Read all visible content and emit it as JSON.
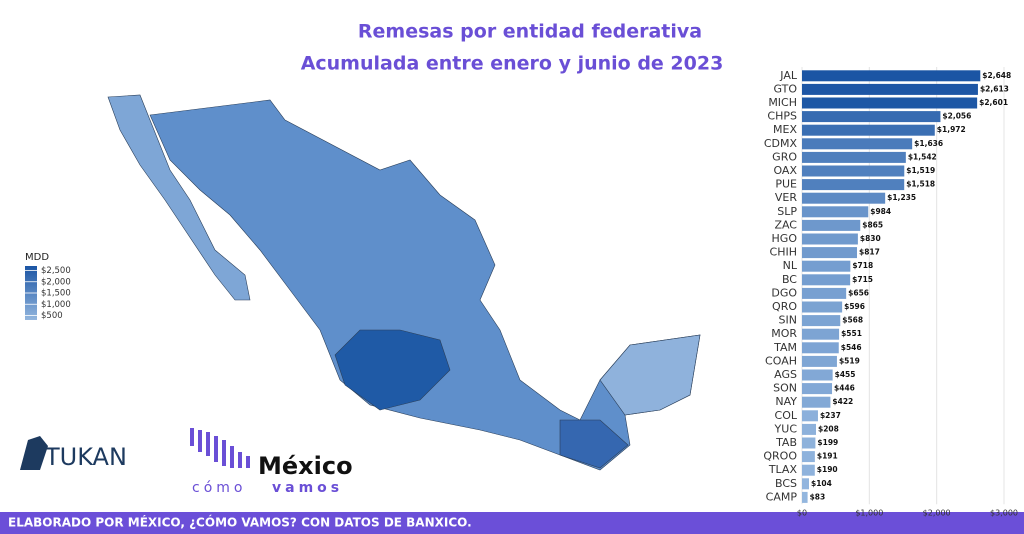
{
  "chart_data": {
    "type": "bar",
    "orientation": "horizontal",
    "title": "Remesas por entidad federativa",
    "subtitle": "Acumulada entre enero y junio de 2023",
    "categories": [
      "JAL",
      "GTO",
      "MICH",
      "CHPS",
      "MEX",
      "CDMX",
      "GRO",
      "OAX",
      "PUE",
      "VER",
      "SLP",
      "ZAC",
      "HGO",
      "CHIH",
      "NL",
      "BC",
      "DGO",
      "QRO",
      "SIN",
      "MOR",
      "TAM",
      "COAH",
      "AGS",
      "SON",
      "NAY",
      "COL",
      "YUC",
      "TAB",
      "QROO",
      "TLAX",
      "BCS",
      "CAMP"
    ],
    "values": [
      2648,
      2613,
      2601,
      2056,
      1972,
      1636,
      1542,
      1519,
      1518,
      1235,
      984,
      865,
      830,
      817,
      718,
      715,
      656,
      596,
      568,
      551,
      546,
      519,
      455,
      446,
      422,
      237,
      208,
      199,
      191,
      190,
      104,
      83
    ],
    "value_labels": [
      "$2,648",
      "$2,613",
      "$2,601",
      "$2,056",
      "$1,972",
      "$1,636",
      "$1,542",
      "$1,519",
      "$1,518",
      "$1,235",
      "$984",
      "$865",
      "$830",
      "$817",
      "$718",
      "$715",
      "$656",
      "$596",
      "$568",
      "$551",
      "$546",
      "$519",
      "$455",
      "$446",
      "$422",
      "$237",
      "$208",
      "$199",
      "$191",
      "$190",
      "$104",
      "$83"
    ],
    "xlim": [
      0,
      3000
    ],
    "xticks": [
      {
        "value": 0,
        "label": "$0"
      },
      {
        "value": 1000,
        "label": "$1,000"
      },
      {
        "value": 2000,
        "label": "$2,000"
      },
      {
        "value": 3000,
        "label": "$3,000"
      }
    ],
    "grid": true,
    "color_scale": [
      "#93b6de",
      "#1b55a4"
    ],
    "colorbar": {
      "title": "MDD",
      "lim": [
        300,
        2700
      ],
      "ticks": [
        {
          "value": 2500,
          "label": "$2,500"
        },
        {
          "value": 2000,
          "label": "$2,000"
        },
        {
          "value": 1500,
          "label": "$1,500"
        },
        {
          "value": 1000,
          "label": "$1,000"
        },
        {
          "value": 500,
          "label": "$500"
        }
      ]
    }
  },
  "logos": {
    "tukan": "TUKAN",
    "mexico": "México",
    "como": "cómo",
    "vamos": "vamos"
  },
  "footer": "ELABORADO POR MÉXICO, ¿CÓMO VAMOS? CON DATOS DE BANXICO."
}
